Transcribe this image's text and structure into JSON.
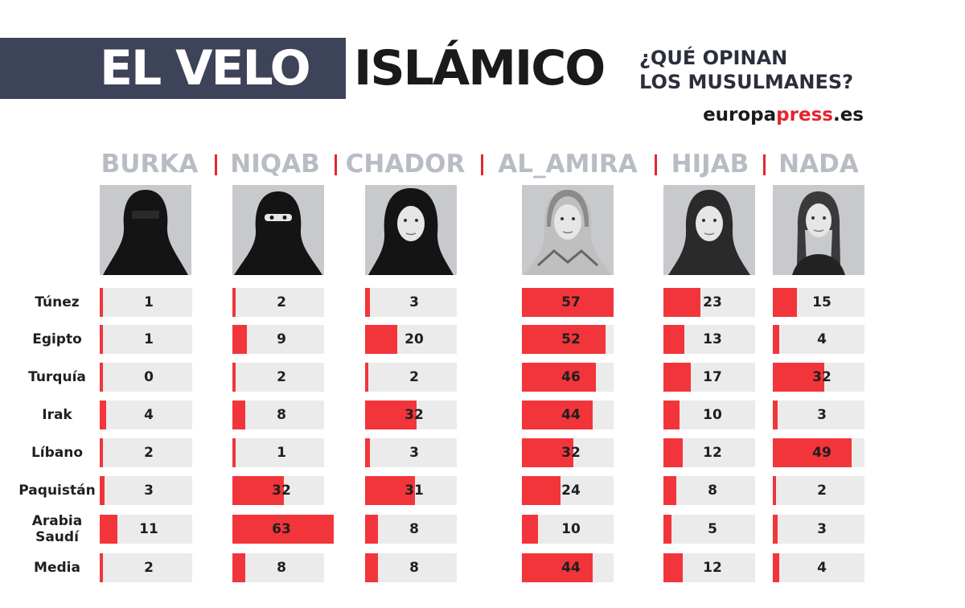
{
  "header": {
    "title_part1": "EL VELO",
    "title_part2": "ISLÁMICO",
    "subtitle_line1": "¿QUÉ OPINAN",
    "subtitle_line2": "LOS MUSULMANES?",
    "brand_prefix": "europa",
    "brand_accent": "press",
    "brand_suffix": ".es"
  },
  "colors": {
    "title_band": "#3d4358",
    "bar": "#f2353b",
    "cell_background": "#ebebeb",
    "header_text": "#b8bcc4",
    "separator": "#e3262f"
  },
  "chart_data": {
    "type": "table",
    "title": "EL VELO ISLÁMICO",
    "columns": [
      "BURKA",
      "NIQAB",
      "CHADOR",
      "AL_AMIRA",
      "HIJAB",
      "NADA"
    ],
    "portrait_icons": [
      "burka-portrait-icon",
      "niqab-portrait-icon",
      "chador-portrait-icon",
      "al-amira-portrait-icon",
      "hijab-portrait-icon",
      "nada-portrait-icon"
    ],
    "rows": [
      {
        "label": [
          "Túnez"
        ],
        "values": [
          1,
          2,
          3,
          57,
          23,
          15
        ]
      },
      {
        "label": [
          "Egipto"
        ],
        "values": [
          1,
          9,
          20,
          52,
          13,
          4
        ]
      },
      {
        "label": [
          "Turquía"
        ],
        "values": [
          0,
          2,
          2,
          46,
          17,
          32
        ]
      },
      {
        "label": [
          "Irak"
        ],
        "values": [
          4,
          8,
          32,
          44,
          10,
          3
        ]
      },
      {
        "label": [
          "Líbano"
        ],
        "values": [
          2,
          1,
          3,
          32,
          12,
          49
        ]
      },
      {
        "label": [
          "Paquistán"
        ],
        "values": [
          3,
          32,
          31,
          24,
          8,
          2
        ]
      },
      {
        "label": [
          "Arabia",
          "Saudí"
        ],
        "values": [
          11,
          63,
          8,
          10,
          5,
          3
        ]
      },
      {
        "label": [
          "Media"
        ],
        "values": [
          2,
          8,
          8,
          44,
          12,
          4
        ]
      }
    ],
    "value_range": [
      0,
      100
    ]
  }
}
